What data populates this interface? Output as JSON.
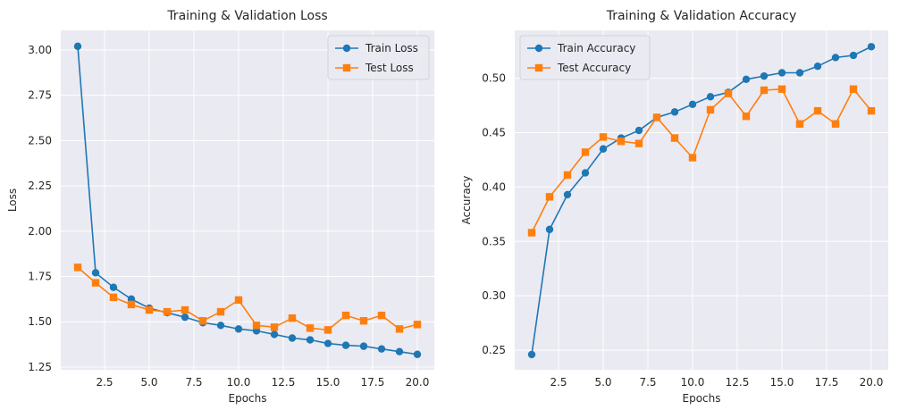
{
  "chart_data": [
    {
      "type": "line",
      "title": "Training & Validation Loss",
      "xlabel": "Epochs",
      "ylabel": "Loss",
      "x": [
        1,
        2,
        3,
        4,
        5,
        6,
        7,
        8,
        9,
        10,
        11,
        12,
        13,
        14,
        15,
        16,
        17,
        18,
        19,
        20
      ],
      "xlim": [
        0.05,
        20.95
      ],
      "ylim": [
        1.235,
        3.108
      ],
      "xticks": [
        2.5,
        5.0,
        7.5,
        10.0,
        12.5,
        15.0,
        17.5,
        20.0
      ],
      "xtick_labels": [
        "2.5",
        "5.0",
        "7.5",
        "10.0",
        "12.5",
        "15.0",
        "17.5",
        "20.0"
      ],
      "yticks": [
        1.25,
        1.5,
        1.75,
        2.0,
        2.25,
        2.5,
        2.75,
        3.0
      ],
      "ytick_labels": [
        "1.25",
        "1.50",
        "1.75",
        "2.00",
        "2.25",
        "2.50",
        "2.75",
        "3.00"
      ],
      "grid": true,
      "legend_position": "top-right",
      "series": [
        {
          "name": "Train Loss",
          "color": "#1f77b4",
          "marker": "circle",
          "values": [
            3.02,
            1.77,
            1.69,
            1.625,
            1.575,
            1.55,
            1.525,
            1.495,
            1.48,
            1.46,
            1.45,
            1.43,
            1.41,
            1.4,
            1.38,
            1.37,
            1.365,
            1.35,
            1.335,
            1.32
          ]
        },
        {
          "name": "Test Loss",
          "color": "#ff7f0e",
          "marker": "square",
          "values": [
            1.8,
            1.715,
            1.635,
            1.595,
            1.565,
            1.555,
            1.565,
            1.505,
            1.555,
            1.62,
            1.48,
            1.47,
            1.52,
            1.465,
            1.455,
            1.535,
            1.505,
            1.535,
            1.46,
            1.485
          ]
        }
      ]
    },
    {
      "type": "line",
      "title": "Training & Validation Accuracy",
      "xlabel": "Epochs",
      "ylabel": "Accuracy",
      "x": [
        1,
        2,
        3,
        4,
        5,
        6,
        7,
        8,
        9,
        10,
        11,
        12,
        13,
        14,
        15,
        16,
        17,
        18,
        19,
        20
      ],
      "xlim": [
        0.05,
        20.95
      ],
      "ylim": [
        0.232,
        0.544
      ],
      "xticks": [
        2.5,
        5.0,
        7.5,
        10.0,
        12.5,
        15.0,
        17.5,
        20.0
      ],
      "xtick_labels": [
        "2.5",
        "5.0",
        "7.5",
        "10.0",
        "12.5",
        "15.0",
        "17.5",
        "20.0"
      ],
      "yticks": [
        0.25,
        0.3,
        0.35,
        0.4,
        0.45,
        0.5
      ],
      "ytick_labels": [
        "0.25",
        "0.30",
        "0.35",
        "0.40",
        "0.45",
        "0.50"
      ],
      "grid": true,
      "legend_position": "top-left",
      "series": [
        {
          "name": "Train Accuracy",
          "color": "#1f77b4",
          "marker": "circle",
          "values": [
            0.246,
            0.361,
            0.393,
            0.413,
            0.435,
            0.445,
            0.452,
            0.464,
            0.469,
            0.476,
            0.483,
            0.487,
            0.499,
            0.502,
            0.505,
            0.505,
            0.511,
            0.519,
            0.521,
            0.529
          ]
        },
        {
          "name": "Test Accuracy",
          "color": "#ff7f0e",
          "marker": "square",
          "values": [
            0.358,
            0.391,
            0.411,
            0.432,
            0.446,
            0.442,
            0.44,
            0.464,
            0.445,
            0.427,
            0.471,
            0.486,
            0.465,
            0.489,
            0.49,
            0.458,
            0.47,
            0.458,
            0.49,
            0.47
          ]
        }
      ]
    }
  ],
  "style": {
    "plot_background": "#eaeaf2",
    "grid_color": "#ffffff",
    "text_color": "#262626"
  }
}
